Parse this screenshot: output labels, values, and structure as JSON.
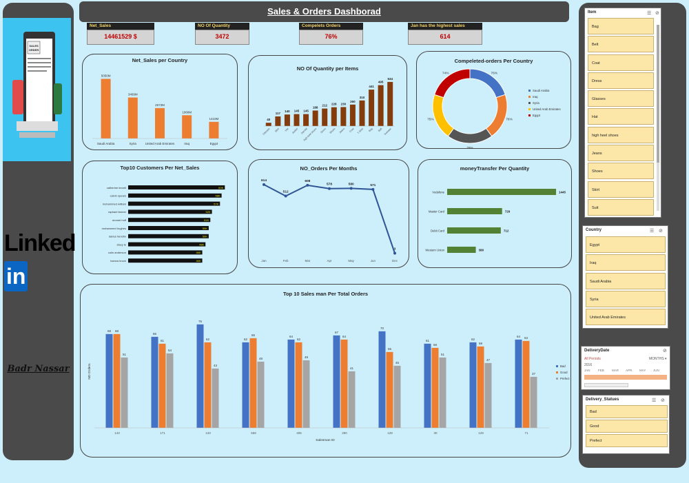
{
  "title": "Sales & Orders Dashborad",
  "author": "Badr Nassar",
  "linkedin_text": "Linked",
  "linkedin_in": "in",
  "kpis": [
    {
      "label": "Net_Sales",
      "value": "14461529 $"
    },
    {
      "label": "NO Of Quantity",
      "value": "3472"
    },
    {
      "label": "Compelets Orders",
      "value": "76%"
    },
    {
      "label": "Jan has the highest sales",
      "value": "614"
    }
  ],
  "chart_titles": {
    "country": "Net_Sales per Country",
    "items": "NO Of Quantity per Items",
    "completed": "Compeleted-orders Per Country",
    "customers": "Top10 Customers Per Net_Sales",
    "months": "NO_Orders Per Months",
    "money": "moneyTransfer Per Quantity",
    "salesman": "Top 10 Sales man Per Total Orders"
  },
  "chart_data": [
    {
      "type": "bar",
      "title": "Net_Sales per Country",
      "categories": [
        "Saudi Arabia",
        "Syria",
        "United Arab Emirates",
        "Iraq",
        "Egypt"
      ],
      "values": [
        5050,
        3469,
        2573,
        1968,
        1410
      ],
      "labels": [
        "5050M",
        "3469M",
        "2573M",
        "1968M",
        "1410M"
      ],
      "ylim": [
        0,
        5600
      ]
    },
    {
      "type": "bar",
      "title": "NO Of Quantity per Items",
      "categories": [
        "Glasses",
        "Skirt",
        "Hat",
        "Jacket",
        "Sandal",
        "high heel shoes",
        "Dress",
        "Shoes",
        "Jeans",
        "Coat",
        "T-Shirt",
        "Bag",
        "Belt",
        "Sweater"
      ],
      "values": [
        40,
        117,
        140,
        145,
        145,
        188,
        212,
        228,
        230,
        260,
        310,
        441,
        495,
        534
      ],
      "ylim": [
        0,
        600
      ]
    },
    {
      "type": "pie",
      "title": "Compeleted-orders Per Country",
      "categories": [
        "Saudi Arabia",
        "Iraq",
        "Syria",
        "United Arab Emirates",
        "Egypt"
      ],
      "values": [
        20,
        20,
        20,
        20,
        20
      ],
      "labels": [
        "76%",
        "76%",
        "76%",
        "75%",
        "74%"
      ],
      "colors": [
        "#4472c4",
        "#ed7d31",
        "#555555",
        "#ffc000",
        "#c00000"
      ]
    },
    {
      "type": "bar",
      "title": "Top10 Customers Per Net_Sales",
      "categories": [
        "catherine tercell",
        "calvin spears",
        "mohammed william",
        "raphael farmer",
        "emmet hoff",
        "mohammed hughes",
        "darius hendrix",
        "stacy le",
        "colin anderson",
        "hamza brock"
      ],
      "values": [
        60,
        58,
        57,
        52,
        51,
        50,
        50,
        48,
        46,
        46
      ],
      "labels": [
        "60K",
        "58K",
        "57K",
        "52K",
        "51K",
        "50K",
        "50K",
        "48K",
        "46K",
        "46K"
      ],
      "xlim": [
        0,
        65
      ]
    },
    {
      "type": "line",
      "title": "NO_Orders Per Months",
      "categories": [
        "Jan",
        "Feb",
        "Mar",
        "Apr",
        "May",
        "Jun",
        "Dec"
      ],
      "values": [
        614,
        512,
        608,
        578,
        580,
        571,
        3
      ],
      "ylim": [
        0,
        650
      ]
    },
    {
      "type": "bar",
      "title": "moneyTransfer Per Quantity",
      "categories": [
        "Vodafone",
        "Master Card",
        "Debit Card",
        "Western Union"
      ],
      "values": [
        1445,
        729,
        712,
        380
      ],
      "xlim": [
        0,
        1600
      ]
    },
    {
      "type": "bar",
      "title": "Top 10 Sales man Per Total Orders",
      "xlabel": "Salesman ID",
      "ylabel": "NO Orders",
      "categories": [
        "143",
        "171",
        "133",
        "569",
        "406",
        "290",
        "128",
        "30",
        "129",
        "71"
      ],
      "series": [
        {
          "name": "Bad",
          "color": "#4472c4",
          "values": [
            68,
            66,
            75,
            62,
            64,
            67,
            70,
            61,
            62,
            64
          ]
        },
        {
          "name": "Good",
          "color": "#ed7d31",
          "values": [
            68,
            61,
            62,
            65,
            62,
            64,
            55,
            58,
            59,
            63
          ]
        },
        {
          "name": "Prefect",
          "color": "#a5a5a5",
          "values": [
            51,
            54,
            43,
            48,
            49,
            41,
            45,
            51,
            47,
            37
          ]
        }
      ],
      "ylim": [
        0,
        80
      ],
      "legend": "right"
    }
  ],
  "slicers": {
    "item": {
      "title": "Item",
      "items": [
        "Bag",
        "Belt",
        "Coat",
        "Dress",
        "Glasses",
        "Hat",
        "high heel shoes",
        "Jeans",
        "Shoes",
        "Skirt",
        "Suit"
      ]
    },
    "country": {
      "title": "Country",
      "items": [
        "Egypt",
        "Iraq",
        "Saudi Arabia",
        "Syria",
        "United Arab Emirates"
      ]
    },
    "delivery_date": {
      "title": "DeliveryDate",
      "period": "All Periods",
      "unit": "MONTHS",
      "year": "2016",
      "months": [
        "JAN",
        "FEB",
        "MAR",
        "APR",
        "MAY",
        "JUN"
      ]
    },
    "status": {
      "title": "Delivery_Statues",
      "items": [
        "Bad",
        "Good",
        "Prefect"
      ]
    }
  }
}
